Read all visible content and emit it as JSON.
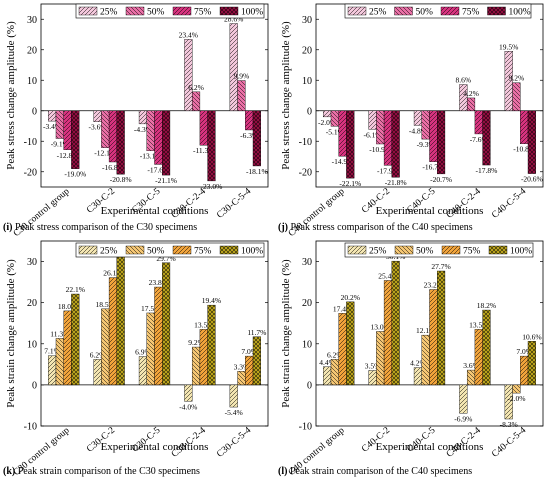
{
  "colors": {
    "pct25": "#f4c8dc",
    "pct50": "#ea6fa6",
    "pct75": "#d8337f",
    "pct100": "#8f0e3f",
    "s25": "#f4e6b2",
    "s50": "#f6c774",
    "s75": "#f2a43b",
    "s100": "#b7a11b"
  },
  "chart_data": [
    {
      "type": "bar",
      "caption": "(i) Peak stress comparison of the C30 specimens",
      "xlabel": "Experimental conditions",
      "ylabel": "Peak stress change amplitude (%)",
      "categories": [
        "C30 control group",
        "C30-C-2",
        "C30-C-5",
        "C30-C-2-4",
        "C30-C-5-4"
      ],
      "ylim": [
        -25,
        35
      ],
      "yticks": [
        "-20",
        "-10",
        "0",
        "10",
        "20",
        "30"
      ],
      "series": [
        {
          "name": "25%",
          "values": [
            -3.4,
            -3.6,
            -4.3,
            23.4,
            28.6
          ],
          "labels": [
            "-3.4%",
            "-3.6%",
            "-4.3%",
            "23.4%",
            "28.6%"
          ]
        },
        {
          "name": "50%",
          "values": [
            -9.1,
            -12.1,
            -13.1,
            6.2,
            9.9
          ],
          "labels": [
            "-9.1%",
            "-12.1%",
            "-13.1%",
            "6.2%",
            "9.9%"
          ]
        },
        {
          "name": "75%",
          "values": [
            -12.8,
            -16.8,
            -17.6,
            -11.3,
            -6.3
          ],
          "labels": [
            "-12.8%",
            "-16.8%",
            "-17.6%",
            "-11.3%",
            "-6.3%"
          ]
        },
        {
          "name": "100%",
          "values": [
            -19.0,
            -20.8,
            -21.1,
            -23.0,
            -18.1
          ],
          "labels": [
            "-19.0%",
            "-20.8%",
            "-21.1%",
            "-23.0%",
            "-18.1%"
          ]
        }
      ]
    },
    {
      "type": "bar",
      "caption": "(j) Peak stress comparison of the C40 specimens",
      "xlabel": "Experimental conditions",
      "ylabel": "Peak stress change amplitude (%)",
      "categories": [
        "C40 control group",
        "C40-C-2",
        "C40-C-5",
        "C40-C-2-4",
        "C40-C-5-4"
      ],
      "ylim": [
        -25,
        35
      ],
      "yticks": [
        "-20",
        "-10",
        "0",
        "10",
        "20",
        "30"
      ],
      "series": [
        {
          "name": "25%",
          "values": [
            -2.0,
            -6.1,
            -4.8,
            8.6,
            19.5
          ],
          "labels": [
            "-2.0%",
            "-6.1%",
            "-4.8%",
            "8.6%",
            "19.5%"
          ]
        },
        {
          "name": "50%",
          "values": [
            -5.1,
            -10.9,
            -9.3,
            4.2,
            9.2
          ],
          "labels": [
            "-5.1%",
            "-10.9%",
            "-9.3%",
            "4.2%",
            "9.2%"
          ]
        },
        {
          "name": "75%",
          "values": [
            -14.9,
            -17.9,
            -16.7,
            -7.6,
            -10.8
          ],
          "labels": [
            "-14.9%",
            "-17.9%",
            "-16.7%",
            "-7.6%",
            "-10.8%"
          ]
        },
        {
          "name": "100%",
          "values": [
            -22.1,
            -21.8,
            -20.7,
            -17.8,
            -20.6
          ],
          "labels": [
            "-22.1%",
            "-21.8%",
            "-20.7%",
            "-17.8%",
            "-20.6%"
          ]
        }
      ]
    },
    {
      "type": "bar",
      "caption": "(k) Peak strain comparison of the C30 specimens",
      "xlabel": "Experimental conditions",
      "ylabel": "Peak strain change amplitude (%)",
      "categories": [
        "C30 control group",
        "C30-C-2",
        "C30-C-5",
        "C30-C-2-4",
        "C30-C-5-4"
      ],
      "ylim": [
        -10,
        35
      ],
      "yticks": [
        "-10",
        "0",
        "10",
        "20",
        "30"
      ],
      "series": [
        {
          "name": "25%",
          "values": [
            7.1,
            6.2,
            6.9,
            -4.0,
            -5.4
          ],
          "labels": [
            "7.1%",
            "6.2%",
            "6.9%",
            "-4.0%",
            "-5.4%"
          ]
        },
        {
          "name": "50%",
          "values": [
            11.3,
            18.5,
            17.5,
            9.2,
            3.3
          ],
          "labels": [
            "11.3%",
            "18.5%",
            "17.5%",
            "9.2%",
            "3.3%"
          ]
        },
        {
          "name": "75%",
          "values": [
            18.0,
            26.1,
            23.8,
            13.5,
            7.0
          ],
          "labels": [
            "18.0%",
            "26.1%",
            "23.8%",
            "13.5%",
            "7.0%"
          ]
        },
        {
          "name": "100%",
          "values": [
            22.1,
            32.1,
            29.7,
            19.4,
            11.7
          ],
          "labels": [
            "22.1%",
            "32.1%",
            "29.7%",
            "19.4%",
            "11.7%"
          ]
        }
      ]
    },
    {
      "type": "bar",
      "caption": "(l) Peak strain comparison of the C40 specimens",
      "xlabel": "Experimental conditions",
      "ylabel": "Peak strain change amplitude (%)",
      "categories": [
        "C40 control group",
        "C40-C-2",
        "C40-C-5",
        "C40-C-2-4",
        "C40-C-5-4"
      ],
      "ylim": [
        -10,
        35
      ],
      "yticks": [
        "-10",
        "0",
        "10",
        "20",
        "30"
      ],
      "series": [
        {
          "name": "25%",
          "values": [
            4.4,
            3.5,
            4.2,
            -6.9,
            -8.3
          ],
          "labels": [
            "4.4%",
            "3.5%",
            "4.2%",
            "-6.9%",
            "-8.3%"
          ]
        },
        {
          "name": "50%",
          "values": [
            6.2,
            13.0,
            12.1,
            3.6,
            -2.0
          ],
          "labels": [
            "6.2%",
            "13.0%",
            "12.1%",
            "3.6%",
            "-2.0%"
          ]
        },
        {
          "name": "75%",
          "values": [
            17.4,
            25.4,
            23.2,
            13.5,
            7.0
          ],
          "labels": [
            "17.4%",
            "25.4%",
            "23.2%",
            "13.5%",
            "7.0%"
          ]
        },
        {
          "name": "100%",
          "values": [
            20.2,
            30.1,
            27.7,
            18.2,
            10.6
          ],
          "labels": [
            "20.2%",
            "30.1%",
            "27.7%",
            "18.2%",
            "10.6%"
          ]
        }
      ]
    }
  ]
}
